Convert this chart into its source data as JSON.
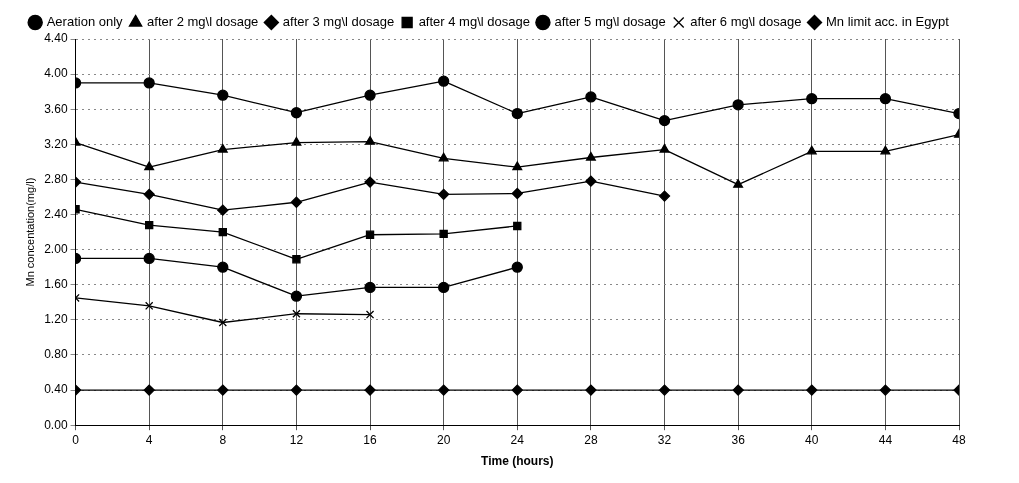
{
  "chart_data": {
    "type": "line",
    "xlabel": "Time (hours)",
    "ylabel": "Mn concentation(mg/l)",
    "x": [
      0,
      4,
      8,
      12,
      16,
      20,
      24,
      28,
      32,
      36,
      40,
      44,
      48
    ],
    "xlim": [
      0,
      48
    ],
    "xticks": [
      0,
      4,
      8,
      12,
      16,
      20,
      24,
      28,
      32,
      36,
      40,
      44,
      48
    ],
    "ylim": [
      0,
      4.4
    ],
    "yticks": [
      {
        "value": 0,
        "label": "0.00"
      },
      {
        "value": 0.4,
        "label": "0.40"
      },
      {
        "value": 0.8,
        "label": "0.80"
      },
      {
        "value": 1.2,
        "label": "1.20"
      },
      {
        "value": 1.6,
        "label": "1.60"
      },
      {
        "value": 2,
        "label": "2.00"
      },
      {
        "value": 2.4,
        "label": "2.40"
      },
      {
        "value": 2.8,
        "label": "2.80"
      },
      {
        "value": 3.2,
        "label": "3.20"
      },
      {
        "value": 3.6,
        "label": "3.60"
      },
      {
        "value": 4,
        "label": "4.00"
      },
      {
        "value": 4.4,
        "label": "4.40"
      }
    ],
    "grid": true,
    "legend": "top",
    "line_style": "solid",
    "series": [
      {
        "name": "Aeration only",
        "color": "#000000",
        "marker": "circle",
        "values": [
          3.9,
          3.9,
          3.76,
          3.56,
          3.76,
          3.92,
          3.55,
          3.74,
          3.47,
          3.65,
          3.72,
          3.72,
          3.55
        ]
      },
      {
        "name": "after 2 mg\\l dosage",
        "color": "#000000",
        "marker": "triangle",
        "values": [
          3.22,
          2.94,
          3.14,
          3.22,
          3.23,
          3.04,
          2.94,
          3.05,
          3.14,
          2.74,
          3.12,
          3.12,
          3.31
        ]
      },
      {
        "name": "after 3 mg\\l dosage",
        "color": "#000000",
        "marker": "diamond",
        "values": [
          2.77,
          2.63,
          2.45,
          2.54,
          2.77,
          2.63,
          2.64,
          2.78,
          2.61,
          null,
          null,
          null,
          null
        ]
      },
      {
        "name": "after 4 mg\\l dosage",
        "color": "#000000",
        "marker": "square",
        "values": [
          2.46,
          2.28,
          2.2,
          1.89,
          2.17,
          2.18,
          2.27,
          null,
          null,
          null,
          null,
          null,
          null
        ]
      },
      {
        "name": "after 5 mg\\l dosage",
        "color": "#000000",
        "marker": "circle",
        "values": [
          1.9,
          1.9,
          1.8,
          1.47,
          1.57,
          1.57,
          1.8,
          null,
          null,
          null,
          null,
          null,
          null
        ]
      },
      {
        "name": "after 6 mg\\l dosage",
        "color": "#000000",
        "marker": "cross",
        "values": [
          1.45,
          1.36,
          1.17,
          1.27,
          1.26,
          null,
          null,
          null,
          null,
          null,
          null,
          null,
          null
        ]
      },
      {
        "name": "Mn limit acc. in Egypt",
        "color": "#000000",
        "marker": "diamond",
        "values": [
          0.4,
          0.4,
          0.4,
          0.4,
          0.4,
          0.4,
          0.4,
          0.4,
          0.4,
          0.4,
          0.4,
          0.4,
          0.4
        ]
      }
    ]
  }
}
